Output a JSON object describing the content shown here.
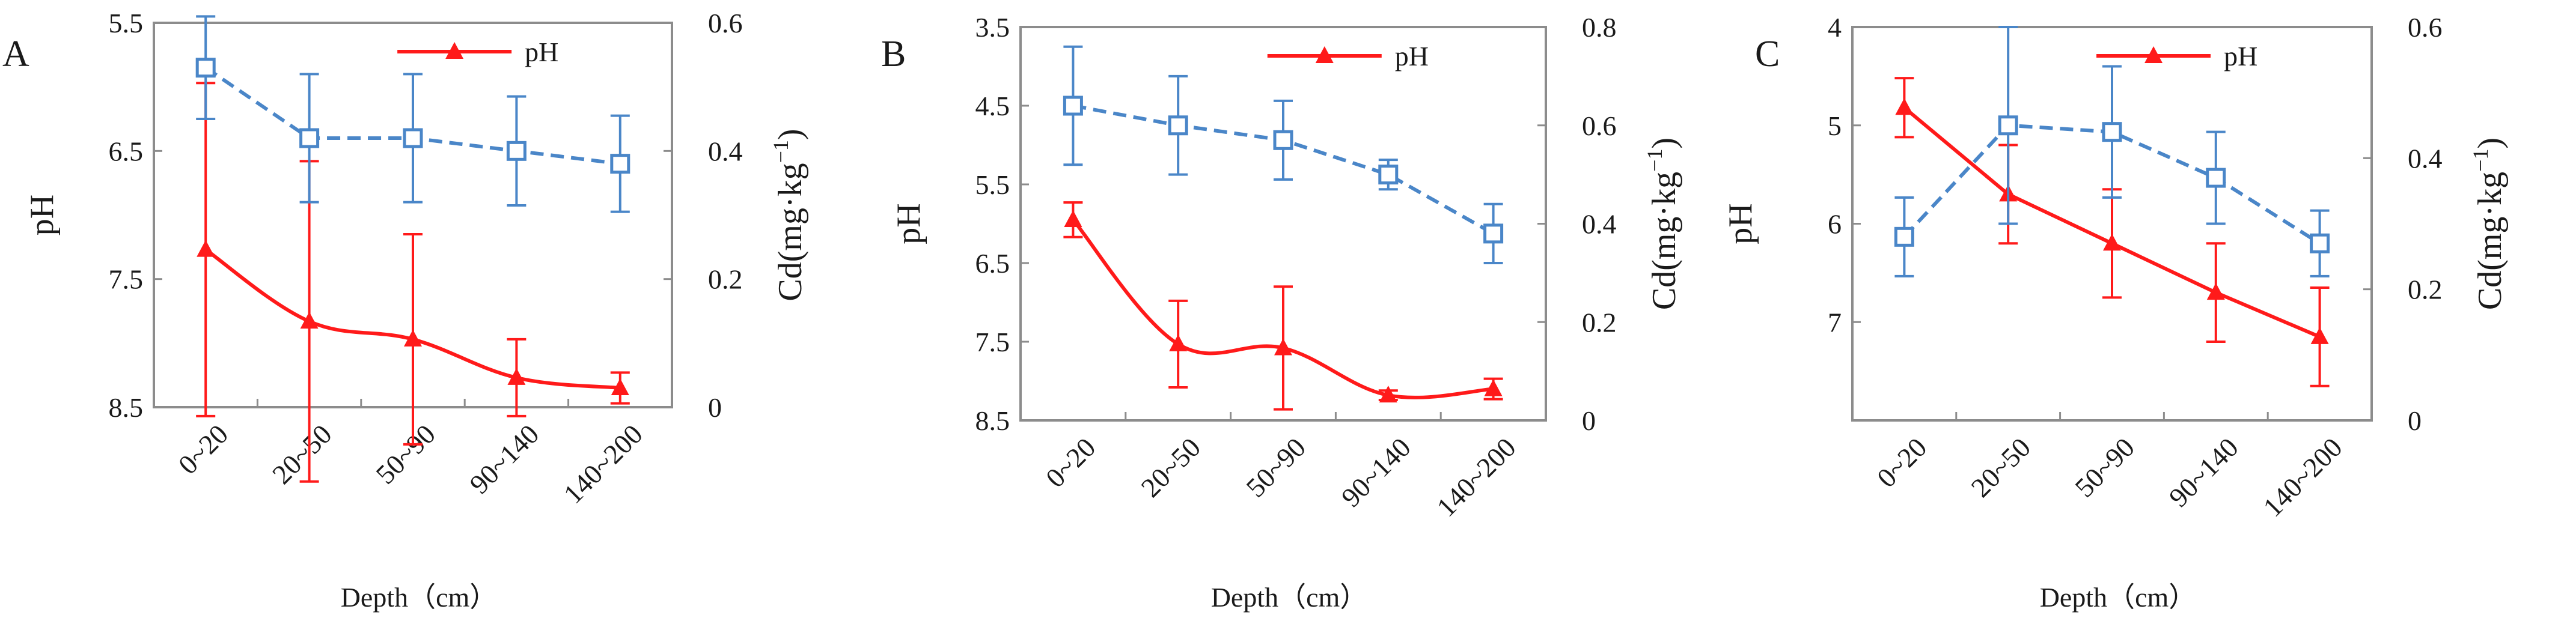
{
  "colors": {
    "ph": "#ff1a1a",
    "cd": "#4a86c8",
    "frame": "#8c8c8c"
  },
  "chart_data": [
    {
      "type": "line",
      "panel": "A",
      "categories": [
        "0~20",
        "20~50",
        "50~90",
        "90~140",
        "140~200"
      ],
      "xlabel": "Depth（cm）",
      "ylabel_left": "pH",
      "ylabel_right": "Cd(mg·kg",
      "ylabel_right_sup": "−1",
      "ylabel_right_close": ")",
      "left_ylim": [
        5.5,
        8.5
      ],
      "left_inverted": true,
      "left_ticks": [
        "5.5",
        "6.5",
        "7.5",
        "8.5"
      ],
      "right_ylim": [
        0,
        0.6
      ],
      "right_ticks": [
        "0",
        "0.2",
        "0.4",
        "0.6"
      ],
      "legend": "pH",
      "series": [
        {
          "name": "pH",
          "axis": "left",
          "style": "solid",
          "marker": "triangle",
          "smooth": true,
          "values": [
            7.27,
            7.83,
            7.97,
            8.27,
            8.35
          ],
          "errors": [
            1.3,
            1.25,
            0.82,
            0.3,
            0.12
          ]
        },
        {
          "name": "Cd",
          "axis": "right",
          "style": "dashed",
          "marker": "square",
          "smooth": false,
          "values": [
            0.53,
            0.42,
            0.42,
            0.4,
            0.38
          ],
          "errors": [
            0.08,
            0.1,
            0.1,
            0.085,
            0.075
          ]
        }
      ]
    },
    {
      "type": "line",
      "panel": "B",
      "categories": [
        "0~20",
        "20~50",
        "50~90",
        "90~140",
        "140~200"
      ],
      "xlabel": "Depth（cm）",
      "ylabel_left": "pH",
      "ylabel_right": "Cd(mg·kg",
      "ylabel_right_sup": "−1",
      "ylabel_right_close": ")",
      "left_ylim": [
        3.5,
        8.5
      ],
      "left_inverted": true,
      "left_ticks": [
        "3.5",
        "4.5",
        "5.5",
        "6.5",
        "7.5",
        "8.5"
      ],
      "right_ylim": [
        0,
        0.8
      ],
      "right_ticks": [
        "0",
        "0.2",
        "0.4",
        "0.6",
        "0.8"
      ],
      "legend": "pH",
      "series": [
        {
          "name": "pH",
          "axis": "left",
          "style": "solid",
          "marker": "triangle",
          "smooth": true,
          "values": [
            5.95,
            7.53,
            7.58,
            8.18,
            8.1
          ],
          "errors": [
            0.22,
            0.55,
            0.78,
            0.06,
            0.13
          ]
        },
        {
          "name": "Cd",
          "axis": "right",
          "style": "dashed",
          "marker": "square",
          "smooth": false,
          "values": [
            0.64,
            0.6,
            0.57,
            0.5,
            0.38
          ],
          "errors": [
            0.12,
            0.1,
            0.08,
            0.03,
            0.06
          ]
        }
      ]
    },
    {
      "type": "line",
      "panel": "C",
      "categories": [
        "0~20",
        "20~50",
        "50~90",
        "90~140",
        "140~200"
      ],
      "xlabel": "Depth（cm）",
      "ylabel_left": "pH",
      "ylabel_right": "Cd(mg·kg",
      "ylabel_right_sup": "−1",
      "ylabel_right_close": ")",
      "left_ylim": [
        4,
        8
      ],
      "left_inverted": true,
      "left_ticks": [
        "4",
        "5",
        "6",
        "7"
      ],
      "right_ylim": [
        0,
        0.6
      ],
      "right_ticks": [
        "0",
        "0.2",
        "0.4",
        "0.6"
      ],
      "legend": "pH",
      "series": [
        {
          "name": "pH",
          "axis": "left",
          "style": "solid",
          "marker": "triangle",
          "smooth": false,
          "values": [
            4.82,
            5.7,
            6.2,
            6.7,
            7.15
          ],
          "errors": [
            0.3,
            0.5,
            0.55,
            0.5,
            0.5
          ]
        },
        {
          "name": "Cd",
          "axis": "right",
          "style": "dashed",
          "marker": "square",
          "smooth": false,
          "values": [
            0.28,
            0.45,
            0.44,
            0.37,
            0.27
          ],
          "errors": [
            0.06,
            0.15,
            0.1,
            0.07,
            0.05
          ]
        }
      ]
    }
  ]
}
